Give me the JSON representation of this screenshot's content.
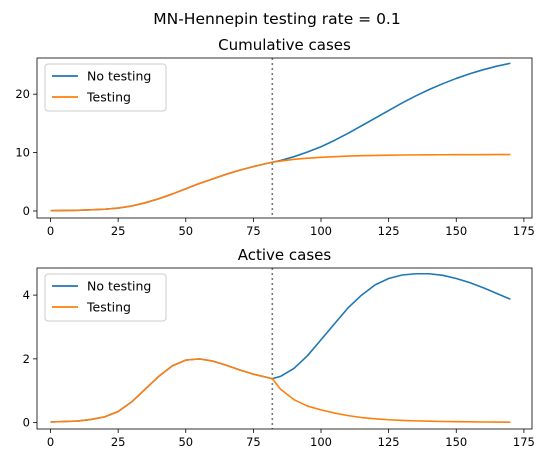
{
  "suptitle": "MN-Hennepin testing rate = 0.1",
  "colors": {
    "no_testing": "#1f77b4",
    "testing": "#ff7f0e",
    "intervention_line": "#777777"
  },
  "chart_data": [
    {
      "type": "line",
      "title": "Cumulative cases",
      "xlabel": "",
      "ylabel": "",
      "xlim": [
        -5,
        178
      ],
      "ylim": [
        -1.2,
        26.2
      ],
      "xticks": [
        0,
        25,
        50,
        75,
        100,
        125,
        150,
        175
      ],
      "yticks": [
        0,
        10,
        20
      ],
      "intervention_x": 82,
      "legend": {
        "position": "top-left",
        "entries": [
          "No testing",
          "Testing"
        ]
      },
      "series": [
        {
          "name": "No testing",
          "color": "#1f77b4",
          "x": [
            0,
            10,
            20,
            25,
            30,
            35,
            40,
            45,
            50,
            55,
            60,
            65,
            70,
            75,
            80,
            82,
            85,
            90,
            95,
            100,
            105,
            110,
            115,
            120,
            125,
            130,
            135,
            140,
            145,
            150,
            155,
            160,
            165,
            170
          ],
          "y": [
            0.05,
            0.12,
            0.3,
            0.5,
            0.85,
            1.4,
            2.1,
            2.9,
            3.8,
            4.7,
            5.5,
            6.3,
            7.0,
            7.6,
            8.15,
            8.35,
            8.65,
            9.3,
            10.1,
            11.0,
            12.1,
            13.3,
            14.6,
            15.9,
            17.2,
            18.5,
            19.7,
            20.8,
            21.8,
            22.7,
            23.5,
            24.2,
            24.8,
            25.3
          ]
        },
        {
          "name": "Testing",
          "color": "#ff7f0e",
          "x": [
            0,
            10,
            20,
            25,
            30,
            35,
            40,
            45,
            50,
            55,
            60,
            65,
            70,
            75,
            80,
            82,
            85,
            90,
            95,
            100,
            105,
            110,
            115,
            120,
            125,
            130,
            135,
            140,
            145,
            150,
            155,
            160,
            165,
            170
          ],
          "y": [
            0.05,
            0.12,
            0.3,
            0.5,
            0.85,
            1.4,
            2.1,
            2.9,
            3.8,
            4.7,
            5.5,
            6.3,
            7.0,
            7.6,
            8.15,
            8.35,
            8.55,
            8.85,
            9.05,
            9.2,
            9.3,
            9.4,
            9.47,
            9.52,
            9.56,
            9.59,
            9.61,
            9.62,
            9.63,
            9.64,
            9.65,
            9.65,
            9.66,
            9.66
          ]
        }
      ]
    },
    {
      "type": "line",
      "title": "Active cases",
      "xlabel": "",
      "ylabel": "",
      "xlim": [
        -5,
        178
      ],
      "ylim": [
        -0.2,
        4.85
      ],
      "xticks": [
        0,
        25,
        50,
        75,
        100,
        125,
        150,
        175
      ],
      "yticks": [
        0,
        2,
        4
      ],
      "intervention_x": 82,
      "legend": {
        "position": "top-left",
        "entries": [
          "No testing",
          "Testing"
        ]
      },
      "series": [
        {
          "name": "No testing",
          "color": "#1f77b4",
          "x": [
            0,
            10,
            15,
            20,
            25,
            30,
            35,
            40,
            45,
            50,
            55,
            60,
            65,
            70,
            75,
            80,
            82,
            85,
            90,
            95,
            100,
            105,
            110,
            115,
            120,
            125,
            130,
            135,
            140,
            145,
            150,
            155,
            160,
            165,
            170
          ],
          "y": [
            0.02,
            0.05,
            0.1,
            0.18,
            0.35,
            0.65,
            1.05,
            1.45,
            1.78,
            1.96,
            2.0,
            1.93,
            1.8,
            1.65,
            1.52,
            1.42,
            1.38,
            1.45,
            1.7,
            2.1,
            2.6,
            3.1,
            3.6,
            4.0,
            4.32,
            4.52,
            4.63,
            4.67,
            4.67,
            4.62,
            4.52,
            4.39,
            4.23,
            4.05,
            3.87
          ]
        },
        {
          "name": "Testing",
          "color": "#ff7f0e",
          "x": [
            0,
            10,
            15,
            20,
            25,
            30,
            35,
            40,
            45,
            50,
            55,
            60,
            65,
            70,
            75,
            80,
            82,
            85,
            90,
            95,
            100,
            105,
            110,
            115,
            120,
            125,
            130,
            135,
            140,
            145,
            150,
            155,
            160,
            165,
            170
          ],
          "y": [
            0.02,
            0.05,
            0.1,
            0.18,
            0.35,
            0.65,
            1.05,
            1.45,
            1.78,
            1.96,
            2.0,
            1.93,
            1.8,
            1.65,
            1.52,
            1.42,
            1.38,
            1.05,
            0.72,
            0.52,
            0.4,
            0.3,
            0.22,
            0.16,
            0.12,
            0.09,
            0.07,
            0.055,
            0.045,
            0.035,
            0.03,
            0.025,
            0.02,
            0.018,
            0.015
          ]
        }
      ]
    }
  ]
}
